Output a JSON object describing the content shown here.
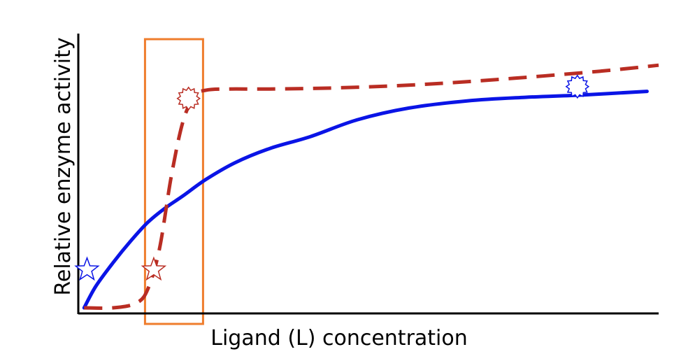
{
  "chart_data": {
    "type": "line",
    "title": "",
    "xlabel": "Ligand (L) concentration",
    "ylabel": "Relative enzyme activity",
    "xlim": [
      0,
      100
    ],
    "ylim": [
      0,
      100
    ],
    "grid": false,
    "ticks": false,
    "series": [
      {
        "style": "solid",
        "color": "#0a14e6",
        "x": [
          1,
          3,
          6,
          9,
          12,
          15,
          18,
          22,
          27,
          33,
          40,
          48,
          57,
          67,
          77,
          87,
          98
        ],
        "y": [
          0,
          9,
          19,
          28,
          36,
          42,
          47,
          54,
          61,
          67,
          72,
          79,
          84,
          87,
          88.5,
          89.5,
          91
        ]
      },
      {
        "style": "dashed",
        "color": "#b92d23",
        "x": [
          1,
          6,
          10,
          12,
          14,
          16,
          18,
          20,
          22,
          26,
          33,
          45,
          60,
          75,
          90,
          100
        ],
        "y": [
          0,
          0,
          2,
          8,
          25,
          55,
          78,
          89,
          91.5,
          92,
          92,
          92.5,
          94,
          96.5,
          99.5,
          102
        ]
      }
    ],
    "annotations": [
      {
        "shape": "star",
        "color": "#0a14e6",
        "x": 1.5,
        "y": 16
      },
      {
        "shape": "star",
        "color": "#b92d23",
        "x": 13,
        "y": 16
      },
      {
        "shape": "starburst",
        "color": "#b92d23",
        "x": 19,
        "y": 88
      },
      {
        "shape": "starburst",
        "color": "#0a14e6",
        "x": 86,
        "y": 93
      }
    ],
    "highlight_box": {
      "color": "#ef7d2d",
      "x": [
        11.5,
        21.5
      ]
    }
  }
}
